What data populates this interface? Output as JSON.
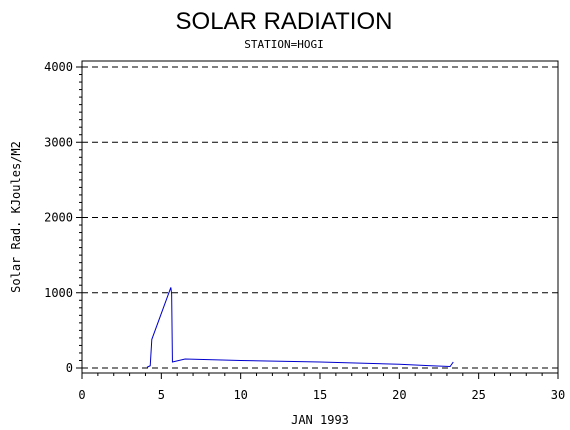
{
  "chart_data": {
    "type": "line",
    "title": "SOLAR RADIATION",
    "subtitle": "STATION=HOGI",
    "xlabel": "JAN 1993",
    "ylabel": "Solar Rad. KJoules/M2",
    "xlim": [
      0,
      30
    ],
    "ylim": [
      0,
      4000
    ],
    "x_ticks": [
      0,
      5,
      10,
      15,
      20,
      25,
      30
    ],
    "y_ticks": [
      0,
      1000,
      2000,
      3000,
      4000
    ],
    "grid": "horizontal dashed",
    "colors": {
      "line": "#0000cc",
      "axis": "#000000",
      "grid": "#000000"
    },
    "series": [
      {
        "x": [
          4.1,
          4.3,
          4.4,
          5.6,
          5.65,
          5.7,
          6.5,
          10,
          15,
          20,
          22,
          23.2,
          23.4
        ],
        "y": [
          10,
          30,
          380,
          1070,
          980,
          80,
          120,
          100,
          80,
          50,
          30,
          20,
          80
        ]
      }
    ]
  }
}
